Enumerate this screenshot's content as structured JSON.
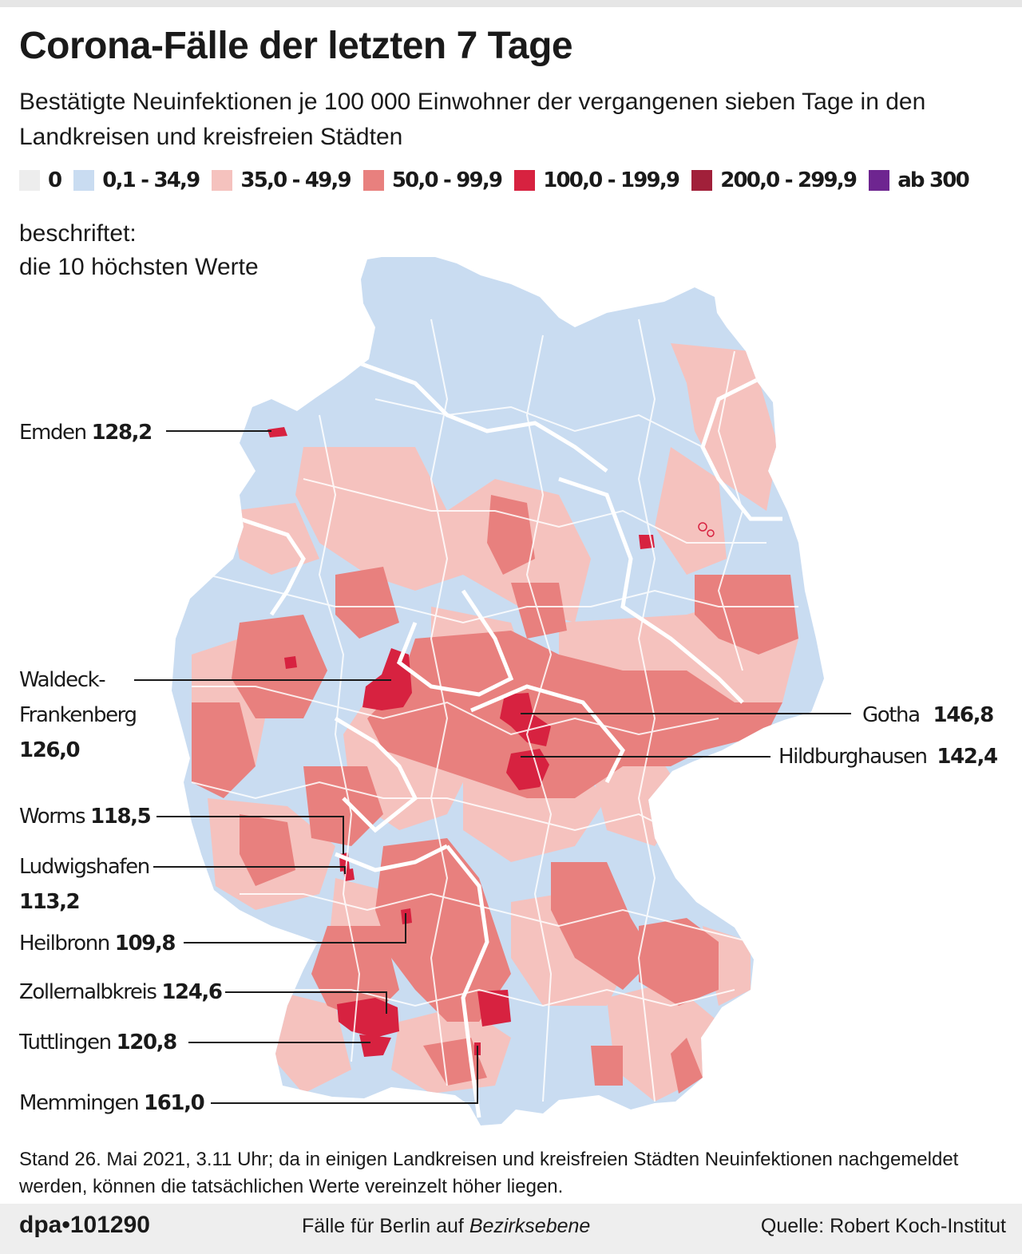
{
  "header": {
    "title": "Corona-Fälle der letzten 7 Tage",
    "subtitle": "Bestätigte Neuinfektionen je 100 000 Einwohner der vergangenen sieben Tage in den Landkreisen und kreisfreien Städten"
  },
  "legend": [
    {
      "label": "0",
      "color": "#ededed"
    },
    {
      "label": "0,1 - 34,9",
      "color": "#c9dcf1"
    },
    {
      "label": "35,0 - 49,9",
      "color": "#f5c2be"
    },
    {
      "label": "50,0 - 99,9",
      "color": "#e8807e"
    },
    {
      "label": "100,0 - 199,9",
      "color": "#d72240"
    },
    {
      "label": "200,0 - 299,9",
      "color": "#a1203a"
    },
    {
      "label": "ab 300",
      "color": "#6e2590"
    }
  ],
  "note": {
    "line1": "beschriftet:",
    "line2": "die 10 höchsten Werte"
  },
  "labels": {
    "emden": {
      "name": "Emden",
      "value": "128,2"
    },
    "waldeck": {
      "name_line1": "Waldeck-",
      "name_line2": "Frankenberg",
      "value": "126,0"
    },
    "worms": {
      "name": "Worms",
      "value": "118,5"
    },
    "ludwigshafen": {
      "name": "Ludwigshafen",
      "value": "113,2"
    },
    "heilbronn": {
      "name": "Heilbronn",
      "value": "109,8"
    },
    "zollernalb": {
      "name": "Zollernalbkreis",
      "value": "124,6"
    },
    "tuttlingen": {
      "name": "Tuttlingen",
      "value": "120,8"
    },
    "memmingen": {
      "name": "Memmingen",
      "value": "161,0"
    },
    "gotha": {
      "name": "Gotha",
      "value": "146,8"
    },
    "hildburghausen": {
      "name": "Hildburghausen",
      "value": "142,4"
    }
  },
  "footnote": "Stand 26. Mai 2021, 3.11 Uhr; da in einigen Landkreisen und kreisfreien Städten Neuinfektionen nachgemeldet werden, können die tatsächlichen Werte vereinzelt höher liegen.",
  "footer": {
    "logo": "dpa•101290",
    "center_text": "Fälle für Berlin auf",
    "center_italic": "Bezirksebene",
    "source": "Quelle: Robert Koch-Institut"
  }
}
